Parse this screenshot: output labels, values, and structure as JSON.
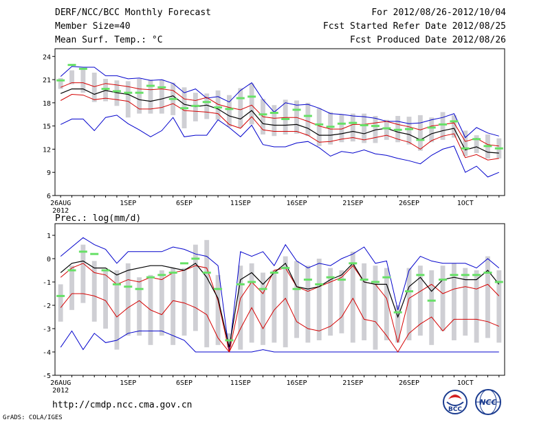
{
  "header": {
    "title": "DERF/NCC/BCC Monthly Forecast",
    "member_size": "Member Size=40",
    "temp_label": "Mean Surf. Temp.: °C",
    "period": "For 2012/08/26-2012/10/04",
    "started": "Fcst Started Refer Date 2012/08/25",
    "produced": "Fcst Produced Date 2012/08/26"
  },
  "footer": {
    "url": "http://cmdp.ncc.cma.gov.cn",
    "grads": "GrADS: COLA/IGES",
    "logo_bcc": "BCC",
    "logo_ncc": "NCC"
  },
  "colors": {
    "box": "#cfcfd4",
    "obs": "#66e066",
    "mean": "#000000",
    "spread": "#d40000",
    "envelope": "#0000cc"
  },
  "chart_data": [
    {
      "type": "line",
      "name": "temperature",
      "title": "Mean Surf. Temp.: °C",
      "x": [
        1,
        2,
        3,
        4,
        5,
        6,
        7,
        8,
        9,
        10,
        11,
        12,
        13,
        14,
        15,
        16,
        17,
        18,
        19,
        20,
        21,
        22,
        23,
        24,
        25,
        26,
        27,
        28,
        29,
        30,
        31,
        32,
        33,
        34,
        35,
        36,
        37,
        38,
        39,
        40
      ],
      "xtick_labels": [
        "26AUG\n2012",
        "1SEP",
        "6SEP",
        "11SEP",
        "16SEP",
        "21SEP",
        "26SEP",
        "1OCT"
      ],
      "xtick_positions": [
        1,
        7,
        12,
        17,
        22,
        27,
        32,
        37
      ],
      "ylim": [
        6,
        25
      ],
      "yticks": [
        6,
        9,
        12,
        15,
        18,
        21,
        24
      ],
      "series": [
        {
          "name": "ensemble max",
          "values": [
            15.2,
            15.9,
            15.9,
            14.4,
            16.1,
            16.4,
            15.3,
            14.5,
            13.6,
            14.4,
            16.1,
            13.6,
            13.8,
            13.8,
            15.8,
            14.8,
            13.6,
            15.1,
            12.6,
            12.3,
            12.3,
            12.8,
            13.0,
            12.2,
            11.1,
            11.7,
            11.5,
            11.9,
            11.4,
            11.2,
            10.8,
            10.5,
            10.1,
            11.2,
            12.0,
            12.4,
            9.0,
            9.8,
            8.4,
            9.0
          ]
        },
        {
          "name": "ensemble min",
          "values": [
            21.4,
            22.7,
            22.6,
            22.6,
            21.5,
            21.5,
            21.1,
            21.2,
            20.9,
            21.0,
            20.5,
            19.3,
            19.8,
            18.6,
            18.8,
            18.1,
            19.6,
            20.6,
            18.4,
            16.8,
            18.0,
            17.7,
            17.8,
            17.3,
            16.6,
            16.5,
            16.3,
            16.2,
            16.0,
            15.6,
            15.6,
            15.3,
            15.4,
            15.8,
            16.1,
            16.6,
            13.5,
            14.8,
            14.1,
            13.7
          ]
        },
        {
          "name": "upper spread",
          "values": [
            20.0,
            20.6,
            20.6,
            20.1,
            20.5,
            20.3,
            20.1,
            19.8,
            19.7,
            19.8,
            19.6,
            18.5,
            18.3,
            18.7,
            17.8,
            17.4,
            17.1,
            17.7,
            16.2,
            16.0,
            16.1,
            16.1,
            15.6,
            15.0,
            14.6,
            14.6,
            15.2,
            15.2,
            15.4,
            15.6,
            15.2,
            14.9,
            14.5,
            15.0,
            15.2,
            15.4,
            13.0,
            13.4,
            12.6,
            12.4
          ]
        },
        {
          "name": "lower spread",
          "values": [
            18.3,
            19.1,
            19.0,
            18.4,
            18.6,
            18.4,
            18.2,
            17.2,
            17.2,
            17.4,
            17.9,
            17.0,
            16.9,
            16.8,
            16.6,
            15.2,
            14.7,
            16.2,
            14.5,
            14.3,
            14.3,
            14.3,
            13.8,
            12.9,
            13.0,
            13.3,
            13.5,
            13.2,
            13.5,
            13.8,
            13.3,
            12.9,
            12.0,
            13.1,
            13.7,
            14.0,
            10.9,
            11.3,
            10.6,
            10.8
          ]
        },
        {
          "name": "ensemble mean",
          "values": [
            19.2,
            19.8,
            19.8,
            19.1,
            19.6,
            19.3,
            19.1,
            18.4,
            18.2,
            18.5,
            18.9,
            17.8,
            17.5,
            17.7,
            17.2,
            16.3,
            15.9,
            17.0,
            15.3,
            15.1,
            15.1,
            15.2,
            14.7,
            13.8,
            13.8,
            14.0,
            14.3,
            14.0,
            14.5,
            14.7,
            14.2,
            13.9,
            13.2,
            14.0,
            14.4,
            14.7,
            11.9,
            12.3,
            11.6,
            11.5
          ]
        },
        {
          "name": "observed",
          "values": [
            20.9,
            22.9,
            22.4,
            null,
            19.8,
            19.5,
            19.3,
            19.3,
            20.2,
            20.0,
            18.5,
            17.3,
            17.6,
            18.1,
            17.4,
            17.2,
            18.6,
            18.8,
            16.5,
            16.7,
            15.9,
            17.1,
            16.3,
            15.2,
            14.9,
            15.3,
            15.4,
            15.1,
            15.0,
            14.7,
            14.5,
            14.6,
            13.2,
            14.8,
            15.2,
            15.6,
            12.1,
            13.3,
            12.4,
            12.1
          ]
        }
      ],
      "boxes": {
        "low": [
          19.8,
          20.4,
          19.3,
          18.1,
          18.2,
          17.6,
          16.1,
          16.6,
          16.6,
          16.6,
          16.4,
          14.7,
          15.6,
          15.9,
          15.8,
          14.9,
          14.8,
          15.2,
          13.9,
          13.7,
          13.9,
          14.0,
          13.7,
          12.4,
          12.6,
          12.9,
          13.0,
          12.8,
          12.8,
          13.2,
          12.9,
          12.6,
          11.8,
          12.9,
          13.2,
          13.5,
          11.1,
          11.5,
          10.8,
          10.8
        ],
        "high": [
          21.2,
          22.2,
          22.5,
          21.9,
          21.1,
          20.9,
          20.8,
          21.1,
          21.0,
          21.0,
          20.6,
          20.0,
          19.3,
          19.2,
          19.6,
          19.0,
          19.9,
          20.5,
          18.5,
          17.7,
          18.4,
          18.3,
          18.0,
          17.3,
          16.8,
          16.5,
          16.6,
          16.6,
          16.3,
          15.8,
          16.3,
          16.2,
          16.4,
          16.1,
          16.8,
          16.4,
          14.4,
          13.8,
          13.9,
          13.4
        ]
      }
    },
    {
      "type": "line",
      "name": "precipitation",
      "title": "Prec.: log(mm/d)",
      "x": [
        1,
        2,
        3,
        4,
        5,
        6,
        7,
        8,
        9,
        10,
        11,
        12,
        13,
        14,
        15,
        16,
        17,
        18,
        19,
        20,
        21,
        22,
        23,
        24,
        25,
        26,
        27,
        28,
        29,
        30,
        31,
        32,
        33,
        34,
        35,
        36,
        37,
        38,
        39,
        40
      ],
      "xtick_labels": [
        "26AUG\n2012",
        "1SEP",
        "6SEP",
        "11SEP",
        "16SEP",
        "21SEP",
        "26SEP",
        "1OCT"
      ],
      "xtick_positions": [
        1,
        7,
        12,
        17,
        22,
        27,
        32,
        37
      ],
      "ylim": [
        -5,
        1.5
      ],
      "yticks": [
        -5,
        -4,
        -3,
        -2,
        -1,
        0,
        1
      ],
      "series": [
        {
          "name": "ensemble max",
          "values": [
            0.1,
            0.5,
            0.9,
            0.6,
            0.4,
            -0.2,
            0.3,
            0.3,
            0.3,
            0.3,
            0.5,
            0.4,
            0.2,
            0.1,
            -0.3,
            -4.0,
            0.3,
            0.1,
            0.3,
            -0.3,
            0.6,
            -0.1,
            -0.4,
            -0.2,
            -0.3,
            0.0,
            0.2,
            0.5,
            -0.2,
            -0.1,
            -2.2,
            -0.5,
            0.1,
            -0.1,
            -0.2,
            -0.2,
            -0.2,
            -0.4,
            0.0,
            -0.4
          ]
        },
        {
          "name": "ensemble min",
          "values": [
            -3.8,
            -3.1,
            -3.9,
            -3.2,
            -3.6,
            -3.5,
            -3.2,
            -3.1,
            -3.1,
            -3.1,
            -3.3,
            -3.5,
            -4.0,
            -4.0,
            -4.0,
            -4.0,
            -4.0,
            -4.0,
            -3.9,
            -4.0,
            -4.0,
            -4.0,
            -4.0,
            -4.0,
            -4.0,
            -4.0,
            -4.0,
            -4.0,
            -4.0,
            -4.0,
            -4.0,
            -4.0,
            -4.0,
            -4.0,
            -4.0,
            -4.0,
            -4.0,
            -4.0,
            -4.0,
            -4.0
          ]
        },
        {
          "name": "upper spread",
          "values": [
            -0.8,
            -0.4,
            -0.2,
            -0.6,
            -0.7,
            -1.1,
            -0.9,
            -1.0,
            -0.8,
            -0.9,
            -0.6,
            -0.5,
            -0.3,
            -0.4,
            -1.8,
            -4.0,
            -1.7,
            -1.0,
            -1.5,
            -0.5,
            -0.4,
            -1.2,
            -1.4,
            -1.2,
            -1.0,
            -0.8,
            -0.3,
            -1.0,
            -1.1,
            -1.7,
            -3.6,
            -1.7,
            -1.4,
            -1.1,
            -1.5,
            -1.3,
            -1.2,
            -1.3,
            -1.1,
            -1.6
          ]
        },
        {
          "name": "lower spread",
          "values": [
            -2.1,
            -1.5,
            -1.5,
            -1.6,
            -1.8,
            -2.5,
            -2.1,
            -1.8,
            -2.2,
            -2.4,
            -1.8,
            -1.9,
            -2.1,
            -2.4,
            -3.4,
            -4.0,
            -3.0,
            -2.1,
            -3.0,
            -2.2,
            -1.7,
            -2.7,
            -3.0,
            -3.1,
            -2.9,
            -2.5,
            -1.7,
            -2.6,
            -2.7,
            -3.3,
            -4.0,
            -3.2,
            -2.8,
            -2.5,
            -3.1,
            -2.6,
            -2.6,
            -2.6,
            -2.7,
            -2.9
          ]
        },
        {
          "name": "ensemble mean",
          "values": [
            -0.6,
            -0.2,
            -0.1,
            -0.4,
            -0.4,
            -0.7,
            -0.5,
            -0.4,
            -0.3,
            -0.3,
            -0.4,
            -0.5,
            -0.2,
            -0.8,
            -1.7,
            -3.8,
            -0.9,
            -0.6,
            -1.1,
            -0.6,
            -0.2,
            -1.2,
            -1.3,
            -1.2,
            -0.9,
            -0.7,
            -0.2,
            -1.0,
            -1.1,
            -1.1,
            -2.5,
            -1.2,
            -0.8,
            -1.4,
            -0.9,
            -0.8,
            -0.9,
            -0.9,
            -0.5,
            -1.1
          ]
        },
        {
          "name": "observed",
          "values": [
            -1.6,
            -0.5,
            0.3,
            0.2,
            -0.5,
            -1.1,
            -1.2,
            -1.3,
            -0.8,
            -0.7,
            -0.6,
            -0.2,
            0.0,
            -0.6,
            -1.3,
            -3.5,
            -1.1,
            -1.0,
            -1.3,
            -0.6,
            -0.4,
            -1.3,
            -0.9,
            -1.1,
            -0.8,
            -0.9,
            -0.2,
            -0.9,
            -1.0,
            -0.8,
            -2.3,
            -1.4,
            -0.7,
            -1.8,
            -0.9,
            -0.7,
            -0.7,
            -0.7,
            -0.6,
            -1.0
          ]
        }
      ],
      "boxes": {
        "low": [
          -2.7,
          -2.2,
          -1.9,
          -2.7,
          -3.0,
          -3.9,
          -3.3,
          -3.3,
          -3.7,
          -3.3,
          -3.7,
          -3.3,
          -3.1,
          -3.8,
          -3.7,
          -3.8,
          -3.9,
          -3.6,
          -3.7,
          -3.6,
          -3.8,
          -3.4,
          -3.6,
          -3.5,
          -3.3,
          -3.2,
          -3.6,
          -3.5,
          -3.9,
          -3.5,
          -3.6,
          -3.5,
          -3.3,
          -3.7,
          -3.1,
          -3.5,
          -3.3,
          -3.6,
          -3.4,
          -3.6
        ],
        "high": [
          -1.1,
          -0.3,
          0.6,
          -0.1,
          -0.5,
          -0.5,
          -0.2,
          -0.8,
          -0.7,
          -0.5,
          -0.4,
          -0.4,
          0.6,
          0.8,
          -0.7,
          -3.2,
          -0.3,
          -0.2,
          -0.6,
          -0.5,
          0.1,
          -0.1,
          -0.3,
          0.0,
          -0.4,
          -0.5,
          0.3,
          -0.2,
          -0.3,
          -0.4,
          -2.0,
          -0.4,
          -0.3,
          -0.5,
          -0.3,
          -0.2,
          -0.4,
          -0.5,
          0.1,
          -0.5
        ]
      }
    }
  ]
}
